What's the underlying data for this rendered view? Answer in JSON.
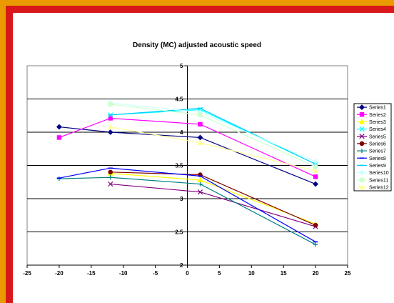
{
  "chart_data": {
    "type": "line",
    "title": "Density (MC) adjusted acoustic speed",
    "xlabel": "",
    "ylabel": "",
    "xlim": [
      -25,
      25
    ],
    "ylim": [
      2,
      5
    ],
    "xticks": [
      -25,
      -20,
      -15,
      -10,
      -5,
      0,
      5,
      10,
      15,
      20,
      25
    ],
    "yticks": [
      2,
      2.5,
      3,
      3.5,
      4,
      4.5,
      5
    ],
    "grid": "horizontal",
    "legend": "right",
    "series": [
      {
        "name": "Series1",
        "color": "#000080",
        "marker": "diamond",
        "x": [
          -20,
          -12,
          2,
          20
        ],
        "y": [
          4.08,
          4.0,
          3.92,
          3.22
        ]
      },
      {
        "name": "Series2",
        "color": "#ff00ff",
        "marker": "square",
        "x": [
          -20,
          -12,
          2,
          20
        ],
        "y": [
          3.92,
          4.21,
          4.12,
          3.33
        ]
      },
      {
        "name": "Series3",
        "color": "#ffff00",
        "marker": "triangle",
        "x": [
          -12,
          2,
          20
        ],
        "y": [
          3.38,
          3.28,
          2.62
        ]
      },
      {
        "name": "Series4",
        "color": "#00ffff",
        "marker": "x",
        "x": [
          -12,
          2,
          20
        ],
        "y": [
          4.26,
          4.34,
          3.52
        ]
      },
      {
        "name": "Series5",
        "color": "#800080",
        "marker": "x",
        "x": [
          -12,
          2,
          20
        ],
        "y": [
          3.22,
          3.1,
          2.58
        ]
      },
      {
        "name": "Series6",
        "color": "#800000",
        "marker": "circle",
        "x": [
          -12,
          2,
          20
        ],
        "y": [
          3.4,
          3.36,
          2.6
        ]
      },
      {
        "name": "Series7",
        "color": "#008080",
        "marker": "plus",
        "x": [
          -20,
          -12,
          2,
          20
        ],
        "y": [
          3.3,
          3.32,
          3.22,
          2.31
        ]
      },
      {
        "name": "Series8",
        "color": "#0000ff",
        "marker": "dash",
        "x": [
          -20,
          -12,
          2,
          20
        ],
        "y": [
          3.31,
          3.46,
          3.34,
          2.35
        ]
      },
      {
        "name": "Series9",
        "color": "#00ccff",
        "marker": "dash",
        "x": [
          -12,
          2,
          20
        ],
        "y": [
          4.26,
          4.36,
          3.52
        ]
      },
      {
        "name": "Series10",
        "color": "#ccffff",
        "marker": "diamond",
        "x": [
          -12,
          2,
          20
        ],
        "y": [
          4.44,
          4.3,
          3.56
        ]
      },
      {
        "name": "Series11",
        "color": "#ccffcc",
        "marker": "square",
        "x": [
          -12,
          2,
          20
        ],
        "y": [
          4.42,
          4.26,
          3.48
        ]
      },
      {
        "name": "Series12",
        "color": "#ffff99",
        "marker": "triangle",
        "x": [
          -12,
          2,
          20
        ],
        "y": [
          4.08,
          3.84,
          3.42
        ]
      }
    ]
  }
}
